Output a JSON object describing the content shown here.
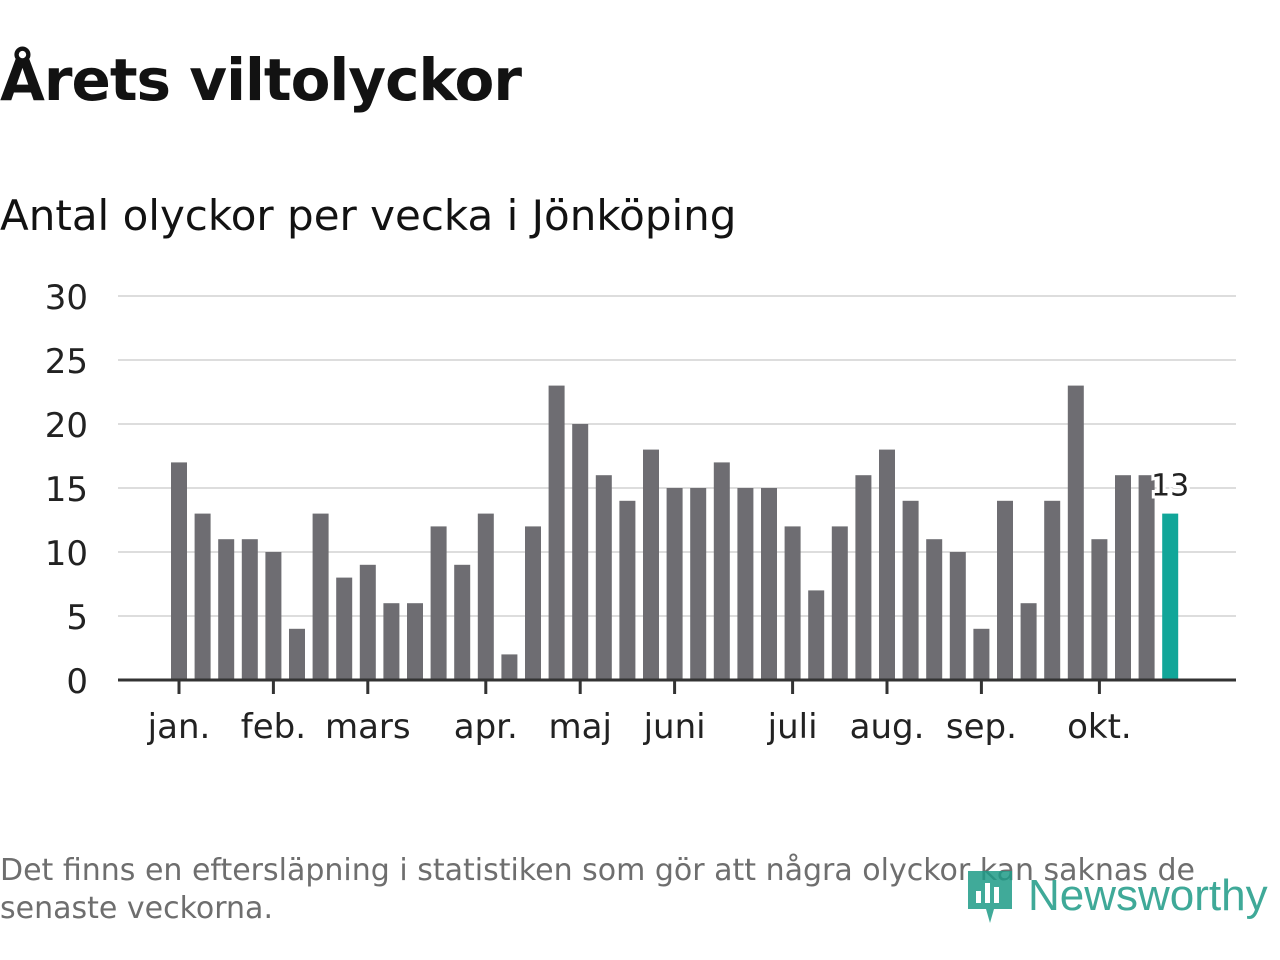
{
  "header": {
    "title": "Årets viltolyckor",
    "subtitle": "Antal olyckor per vecka i Jönköping"
  },
  "footer": {
    "note": "Det finns en eftersläpning i statistiken som gör att några olyckor kan saknas de senaste veckorna.",
    "logo_text": "Newsworthy"
  },
  "colors": {
    "bar": "#6e6d72",
    "highlight": "#11a699",
    "grid": "#dddddd",
    "axis": "#333333"
  },
  "chart_data": {
    "type": "bar",
    "title": "Antal olyckor per vecka i Jönköping",
    "ylim": [
      0,
      30
    ],
    "yticks": [
      0,
      5,
      10,
      15,
      20,
      25,
      30
    ],
    "grid": true,
    "month_labels": [
      "jan.",
      "feb.",
      "mars",
      "apr.",
      "maj",
      "juni",
      "juli",
      "aug.",
      "sep.",
      "okt."
    ],
    "month_label_weeks": [
      1,
      5,
      9,
      14,
      18,
      22,
      27,
      31,
      35,
      40
    ],
    "weeks": [
      1,
      2,
      3,
      4,
      5,
      6,
      7,
      8,
      9,
      10,
      11,
      12,
      13,
      14,
      15,
      16,
      17,
      18,
      19,
      20,
      21,
      22,
      23,
      24,
      25,
      26,
      27,
      28,
      29,
      30,
      31,
      32,
      33,
      34,
      35,
      36,
      37,
      38,
      39,
      40,
      41,
      42,
      43
    ],
    "values": [
      17,
      13,
      11,
      11,
      10,
      4,
      13,
      8,
      9,
      6,
      6,
      12,
      9,
      13,
      2,
      12,
      23,
      20,
      16,
      14,
      18,
      15,
      15,
      17,
      15,
      15,
      12,
      7,
      12,
      16,
      18,
      14,
      11,
      10,
      4,
      14,
      6,
      14,
      23,
      11,
      16,
      16,
      13
    ],
    "highlight_label": "13"
  }
}
